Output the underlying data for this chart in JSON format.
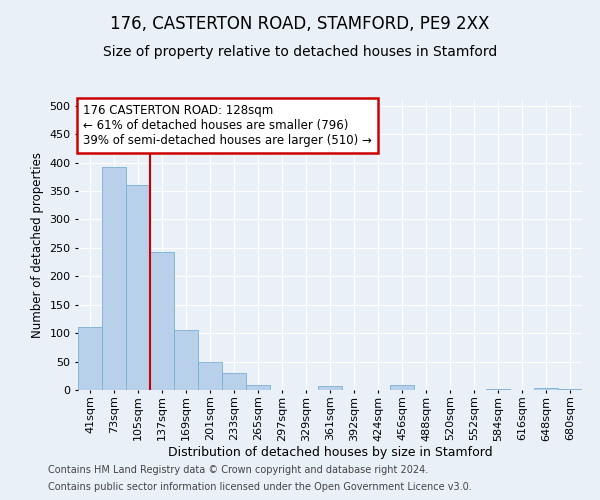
{
  "title1": "176, CASTERTON ROAD, STAMFORD, PE9 2XX",
  "title2": "Size of property relative to detached houses in Stamford",
  "xlabel": "Distribution of detached houses by size in Stamford",
  "ylabel": "Number of detached properties",
  "categories": [
    "41sqm",
    "73sqm",
    "105sqm",
    "137sqm",
    "169sqm",
    "201sqm",
    "233sqm",
    "265sqm",
    "297sqm",
    "329sqm",
    "361sqm",
    "392sqm",
    "424sqm",
    "456sqm",
    "488sqm",
    "520sqm",
    "552sqm",
    "584sqm",
    "616sqm",
    "648sqm",
    "680sqm"
  ],
  "values": [
    110,
    393,
    360,
    242,
    105,
    50,
    30,
    8,
    0,
    0,
    7,
    0,
    0,
    8,
    0,
    0,
    0,
    2,
    0,
    3,
    2
  ],
  "bar_color": "#b8d0ea",
  "bar_edge_color": "#7aafd4",
  "vline_x": 2.5,
  "vline_color": "#cc0000",
  "annotation_text": "176 CASTERTON ROAD: 128sqm\n← 61% of detached houses are smaller (796)\n39% of semi-detached houses are larger (510) →",
  "annotation_box_facecolor": "#ffffff",
  "annotation_box_edgecolor": "#cc0000",
  "ylim": [
    0,
    510
  ],
  "yticks": [
    0,
    50,
    100,
    150,
    200,
    250,
    300,
    350,
    400,
    450,
    500
  ],
  "footer1": "Contains HM Land Registry data © Crown copyright and database right 2024.",
  "footer2": "Contains public sector information licensed under the Open Government Licence v3.0.",
  "bg_color": "#eaf0f8",
  "grid_color": "#ffffff",
  "title1_fontsize": 12,
  "title2_fontsize": 10,
  "xlabel_fontsize": 9,
  "ylabel_fontsize": 8.5,
  "tick_fontsize": 8,
  "annotation_fontsize": 8.5,
  "footer_fontsize": 7
}
